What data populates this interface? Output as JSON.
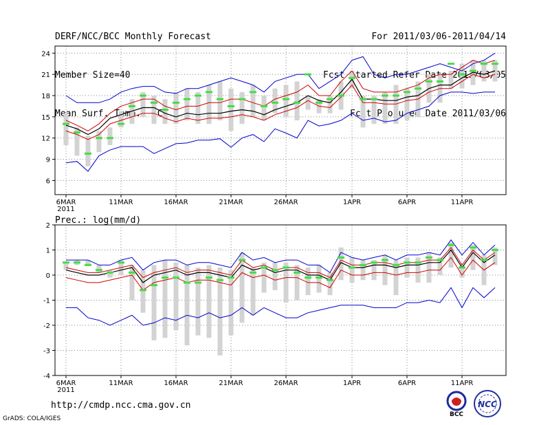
{
  "header": {
    "title": "DERF/NCC/BCC Monthly Forecast",
    "member_size": "Member Size=40",
    "variable": "Mean Surf. Temp.: °C",
    "period": "For 2011/03/06-2011/04/14",
    "start_date": "Fcst Started Refer Date 2011/03/05",
    "produced_date": "Fcst Produced Date 2011/03/06"
  },
  "footer": {
    "url": "http://cmdp.ncc.cma.gov.cn",
    "grads": "GrADS: COLA/IGES",
    "bcc_logo_text": "BCC",
    "ncc_logo_text": "NCC"
  },
  "colors": {
    "envelope": "#0000cc",
    "spread": "#cc0000",
    "mean": "#000000",
    "box": "#d3d3d3",
    "median": "#44dd44",
    "grid": "#808080"
  },
  "chart_data": [
    {
      "type": "box-line",
      "title": "Mean Surf. Temp.: °C",
      "x_labels": [
        "6MAR",
        "11MAR",
        "16MAR",
        "21MAR",
        "26MAR",
        "1APR",
        "6APR",
        "11APR"
      ],
      "x_sublabel": "2011",
      "x_label_days": [
        1,
        6,
        11,
        16,
        21,
        27,
        32,
        37
      ],
      "days": 40,
      "ylim": [
        4,
        25
      ],
      "yticks": [
        6,
        9,
        12,
        15,
        18,
        21,
        24
      ],
      "max": [
        18,
        17,
        17,
        17,
        17.5,
        18.5,
        19,
        19.3,
        19.3,
        18.5,
        18.3,
        19,
        19,
        19.5,
        20,
        20.5,
        20,
        19.5,
        18.5,
        20,
        20.5,
        21,
        21,
        19,
        20,
        21,
        23,
        23.5,
        21,
        20.5,
        21,
        21,
        21.5,
        22,
        22.5,
        22,
        21.5,
        22.5,
        23,
        24
      ],
      "p_high": [
        14.5,
        13.8,
        13,
        14,
        15.5,
        16.5,
        17,
        17.5,
        17.5,
        16.5,
        16,
        16.5,
        16.5,
        17,
        17,
        17.5,
        17.5,
        17,
        16.5,
        17.5,
        18,
        18.5,
        19.5,
        18,
        18,
        20,
        21.5,
        19,
        18.5,
        18.5,
        18.5,
        19,
        19.5,
        20.5,
        21,
        21,
        22,
        23,
        22.5,
        23
      ],
      "mean": [
        13.8,
        13.3,
        12.5,
        13.3,
        14.8,
        15.3,
        15.8,
        16.3,
        16.3,
        15.5,
        15,
        15.5,
        15.3,
        15.5,
        15.5,
        15.8,
        16,
        15.8,
        15.3,
        16,
        16.5,
        17,
        18,
        17.3,
        17,
        18.5,
        20.3,
        17.5,
        17.5,
        17.3,
        17.3,
        17.8,
        18,
        19,
        19.5,
        19.5,
        20.5,
        21.3,
        21,
        21.5
      ],
      "p_low": [
        13,
        12.5,
        11.8,
        12.5,
        14,
        14.5,
        15,
        15.5,
        15.5,
        14.8,
        14.3,
        14.8,
        14.5,
        14.8,
        14.8,
        15,
        15.3,
        15,
        14.5,
        15.3,
        15.8,
        16.3,
        17.3,
        16.5,
        16.3,
        17.8,
        19.5,
        17,
        17,
        16.8,
        16.8,
        17.3,
        17.5,
        18.5,
        19,
        19,
        20,
        21,
        20.5,
        21
      ],
      "min": [
        8.5,
        8.7,
        7.3,
        9.5,
        10.3,
        10.8,
        10.8,
        10.8,
        9.8,
        10.5,
        11.2,
        11.3,
        11.7,
        11.7,
        11.9,
        10.7,
        12,
        12.5,
        11.5,
        13.3,
        12.7,
        12,
        14.5,
        13.7,
        14,
        14.5,
        15.5,
        14.5,
        14.8,
        14.3,
        14.5,
        15.5,
        16,
        16.5,
        18,
        18.5,
        18.5,
        18.3,
        18.5,
        18.5
      ],
      "box_top": [
        15.5,
        13.5,
        12.3,
        13,
        13.5,
        15.8,
        17.5,
        18.5,
        18,
        17.5,
        18.5,
        19,
        18.5,
        19.5,
        20,
        19,
        18.5,
        19.5,
        18,
        19,
        19.5,
        20,
        18,
        17.5,
        18,
        20,
        21.5,
        18,
        18,
        18.5,
        19.5,
        19,
        20,
        21,
        21,
        21.5,
        22.5,
        23,
        23,
        23
      ],
      "box_bottom": [
        11,
        9.5,
        8,
        10,
        11,
        13.5,
        14,
        15,
        14,
        14,
        14,
        14.5,
        14,
        14,
        14.5,
        13,
        14,
        15,
        14.5,
        15.5,
        15,
        14.5,
        16,
        15.5,
        15.5,
        16,
        19,
        13.5,
        14,
        14,
        14,
        14.5,
        15,
        17,
        17,
        19,
        19,
        19.5,
        20,
        20
      ],
      "median": [
        14,
        12.8,
        9.8,
        12,
        12,
        14,
        16.5,
        18,
        17,
        16,
        17,
        17.5,
        18,
        18.5,
        17.5,
        16.5,
        17.5,
        18.5,
        16.5,
        17,
        17.5,
        17,
        21,
        17,
        17.5,
        18,
        20.5,
        17.5,
        17.5,
        18,
        18,
        18.5,
        19,
        20,
        20,
        22.5,
        21,
        21.5,
        22.5,
        22.5
      ]
    },
    {
      "type": "box-line",
      "title": "Prec.: log(mm/d)",
      "x_labels": [
        "6MAR",
        "11MAR",
        "16MAR",
        "21MAR",
        "26MAR",
        "1APR",
        "6APR",
        "11APR"
      ],
      "x_sublabel": "2011",
      "x_label_days": [
        1,
        6,
        11,
        16,
        21,
        27,
        32,
        37
      ],
      "days": 40,
      "ylim": [
        -4,
        2
      ],
      "yticks": [
        -4,
        -3,
        -2,
        -1,
        0,
        1,
        2
      ],
      "max": [
        0.6,
        0.6,
        0.6,
        0.4,
        0.4,
        0.6,
        0.7,
        0.2,
        0.5,
        0.6,
        0.6,
        0.4,
        0.5,
        0.5,
        0.4,
        0.3,
        0.9,
        0.6,
        0.7,
        0.5,
        0.6,
        0.6,
        0.4,
        0.4,
        0.1,
        0.9,
        0.7,
        0.6,
        0.7,
        0.8,
        0.6,
        0.8,
        0.8,
        0.9,
        0.8,
        1.4,
        0.8,
        1.3,
        0.8,
        1.2
      ],
      "p_high": [
        0.3,
        0.2,
        0.1,
        0.1,
        0.2,
        0.3,
        0.4,
        -0.1,
        0.1,
        0.2,
        0.3,
        0.1,
        0.2,
        0.2,
        0.1,
        0,
        0.6,
        0.3,
        0.4,
        0.2,
        0.3,
        0.3,
        0.1,
        0.1,
        -0.1,
        0.6,
        0.4,
        0.4,
        0.5,
        0.5,
        0.4,
        0.5,
        0.5,
        0.6,
        0.6,
        1.1,
        0.4,
        1,
        0.6,
        0.9
      ],
      "mean": [
        0.2,
        0.1,
        0,
        0,
        0.1,
        0.2,
        0.3,
        -0.3,
        0,
        0.1,
        0.2,
        0,
        0.1,
        0.1,
        0,
        -0.1,
        0.4,
        0.2,
        0.3,
        0.1,
        0.2,
        0.2,
        0,
        0,
        -0.2,
        0.5,
        0.3,
        0.3,
        0.4,
        0.4,
        0.3,
        0.4,
        0.4,
        0.5,
        0.5,
        1,
        0.3,
        0.9,
        0.5,
        0.8
      ],
      "p_low": [
        -0.1,
        -0.2,
        -0.3,
        -0.3,
        -0.2,
        -0.1,
        0,
        -0.6,
        -0.3,
        -0.2,
        -0.1,
        -0.3,
        -0.2,
        -0.2,
        -0.3,
        -0.4,
        0.1,
        -0.1,
        0,
        -0.2,
        -0.1,
        -0.1,
        -0.3,
        -0.3,
        -0.5,
        0.2,
        0,
        0,
        0.1,
        0.1,
        0,
        0.1,
        0.1,
        0.2,
        0.2,
        0.7,
        0,
        0.6,
        0.2,
        0.5
      ],
      "min": [
        -1.3,
        -1.3,
        -1.7,
        -1.8,
        -2,
        -1.8,
        -1.6,
        -2,
        -1.9,
        -1.7,
        -1.8,
        -1.6,
        -1.7,
        -1.5,
        -1.7,
        -1.6,
        -1.3,
        -1.6,
        -1.3,
        -1.5,
        -1.7,
        -1.7,
        -1.5,
        -1.4,
        -1.3,
        -1.2,
        -1.2,
        -1.2,
        -1.3,
        -1.3,
        -1.3,
        -1.1,
        -1.1,
        -1,
        -1.1,
        -0.5,
        -1.3,
        -0.5,
        -0.9,
        -0.5
      ],
      "box_top": [
        0.5,
        0.6,
        0.6,
        0.4,
        0.2,
        0.6,
        0.4,
        0.2,
        0.4,
        0.6,
        0.5,
        0.4,
        0.3,
        0.4,
        0.3,
        0.2,
        0.9,
        0.3,
        0.5,
        0.5,
        0.5,
        0.4,
        0.3,
        0.4,
        0.1,
        1.1,
        0.7,
        0.6,
        0.6,
        0.8,
        0.6,
        0.7,
        0.7,
        0.9,
        0.7,
        1.3,
        0.4,
        1.2,
        0.8,
        1.1
      ],
      "box_bottom": [
        0.2,
        0.4,
        0.4,
        0.1,
        -0.1,
        0,
        -1,
        -1.5,
        -2.6,
        -2.5,
        -2.2,
        -2.8,
        -2.4,
        -2.5,
        -3.2,
        -2.4,
        -1.9,
        -1.6,
        -0.7,
        -0.6,
        -1.1,
        -1,
        -0.8,
        -0.7,
        -0.8,
        -0.2,
        -0.3,
        -0.2,
        -0.2,
        -0.4,
        -0.8,
        -0.1,
        -0.3,
        -0.3,
        0,
        0.3,
        -0.1,
        0.2,
        -0.4,
        0.4
      ],
      "median": [
        0.5,
        0.5,
        0.4,
        0.2,
        0.1,
        0.5,
        0.1,
        -0.6,
        -0.4,
        -0.1,
        -0.1,
        -0.3,
        -0.3,
        -0.1,
        -0.2,
        -0.1,
        0.6,
        0.1,
        0.3,
        0.2,
        0.3,
        0.1,
        -0.1,
        -0.1,
        -0.2,
        0.7,
        0.3,
        0.4,
        0.5,
        0.6,
        0.4,
        0.5,
        0.5,
        0.7,
        0.6,
        1.2,
        0.3,
        1.1,
        0.6,
        1
      ]
    }
  ]
}
